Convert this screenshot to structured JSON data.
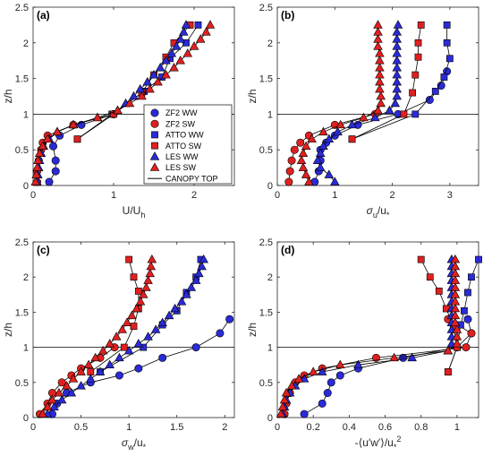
{
  "colors": {
    "blue": "#2a2bd6",
    "red": "#e02020",
    "ink": "#262626",
    "frame": "#262626"
  },
  "legend": {
    "entries": [
      {
        "label": "ZF2 WW",
        "color": "#2a2bd6",
        "marker": "circle"
      },
      {
        "label": "ZF2 SW",
        "color": "#e02020",
        "marker": "circle"
      },
      {
        "label": "ATTO WW",
        "color": "#2a2bd6",
        "marker": "square"
      },
      {
        "label": "ATTO SW",
        "color": "#e02020",
        "marker": "square"
      },
      {
        "label": "LES WW",
        "color": "#2a2bd6",
        "marker": "triangle"
      },
      {
        "label": "LES SW",
        "color": "#e02020",
        "marker": "triangle"
      },
      {
        "label": "CANOPY TOP",
        "color": "#000000",
        "marker": "line"
      }
    ],
    "placement": "inside panel (a), lower right"
  },
  "chart_data": [
    {
      "type": "line",
      "panel_label": "(a)",
      "xlabel": {
        "main": "U/U",
        "sub": "h"
      },
      "ylabel": "z/h",
      "xlim": [
        0,
        2.5
      ],
      "ylim": [
        0,
        2.5
      ],
      "xticks": [
        "0",
        "1",
        "2"
      ],
      "xtick_values": [
        0,
        1,
        2
      ],
      "yticks": [
        "0",
        "0.5",
        "1",
        "1.5",
        "2",
        "2.5"
      ],
      "ytick_values": [
        0,
        0.5,
        1,
        1.5,
        2,
        2.5
      ],
      "canopy_top": 1,
      "series": [
        {
          "name": "ZF2 WW",
          "marker": "circle",
          "color": "blue",
          "y": [
            0.05,
            0.2,
            0.35,
            0.55,
            0.7,
            0.85,
            1.0
          ],
          "x": [
            0.2,
            0.28,
            0.28,
            0.25,
            0.33,
            0.6,
            1.0
          ]
        },
        {
          "name": "ZF2 SW",
          "marker": "circle",
          "color": "red",
          "y": [
            0.05,
            0.2,
            0.35,
            0.5,
            0.6,
            0.7,
            0.85,
            1.0
          ],
          "x": [
            0.05,
            0.05,
            0.07,
            0.1,
            0.12,
            0.18,
            0.5,
            1.0
          ]
        },
        {
          "name": "ATTO WW",
          "marker": "square",
          "color": "blue",
          "y": [
            0.65,
            1.0,
            1.32,
            1.52,
            1.78,
            2.0,
            2.25
          ],
          "x": [
            0.55,
            0.98,
            1.38,
            1.6,
            1.7,
            1.9,
            2.05
          ]
        },
        {
          "name": "ATTO SW",
          "marker": "square",
          "color": "red",
          "y": [
            0.65,
            1.0,
            1.3,
            1.55,
            1.8,
            2.0,
            2.25
          ],
          "x": [
            0.55,
            1.0,
            1.35,
            1.5,
            1.65,
            1.75,
            1.95
          ]
        },
        {
          "name": "LES WW",
          "marker": "triangle",
          "color": "blue",
          "y": [
            0.05,
            0.15,
            0.25,
            0.35,
            0.45,
            0.55,
            0.65,
            0.75,
            0.85,
            0.95,
            1.05,
            1.15,
            1.25,
            1.35,
            1.45,
            1.55,
            1.65,
            1.75,
            1.85,
            1.95,
            2.05,
            2.15,
            2.25
          ],
          "x": [
            0.05,
            0.06,
            0.07,
            0.08,
            0.1,
            0.13,
            0.2,
            0.3,
            0.5,
            0.8,
            1.05,
            1.15,
            1.25,
            1.33,
            1.42,
            1.5,
            1.58,
            1.65,
            1.72,
            1.78,
            1.83,
            1.87,
            1.9
          ]
        },
        {
          "name": "LES SW",
          "marker": "triangle",
          "color": "red",
          "y": [
            0.05,
            0.15,
            0.25,
            0.35,
            0.45,
            0.55,
            0.65,
            0.75,
            0.85,
            0.95,
            1.05,
            1.15,
            1.25,
            1.35,
            1.45,
            1.55,
            1.65,
            1.75,
            1.85,
            1.95,
            2.05,
            2.15,
            2.25
          ],
          "x": [
            0.03,
            0.04,
            0.05,
            0.06,
            0.08,
            0.12,
            0.18,
            0.3,
            0.5,
            0.8,
            1.05,
            1.2,
            1.35,
            1.45,
            1.55,
            1.65,
            1.75,
            1.83,
            1.92,
            2.0,
            2.08,
            2.15,
            2.2
          ]
        }
      ]
    },
    {
      "type": "line",
      "panel_label": "(b)",
      "xlabel": {
        "main": "σ",
        "main_sub": "u",
        "rest": "/u",
        "sub": "*"
      },
      "ylabel": "z/h",
      "xlim": [
        0,
        3.5
      ],
      "ylim": [
        0,
        2.5
      ],
      "xticks": [
        "0",
        "1",
        "2",
        "3"
      ],
      "xtick_values": [
        0,
        1,
        2,
        3
      ],
      "yticks": [
        "0",
        "0.5",
        "1",
        "1.5",
        "2",
        "2.5"
      ],
      "ytick_values": [
        0,
        0.5,
        1,
        1.5,
        2,
        2.5
      ],
      "canopy_top": 1,
      "series": [
        {
          "name": "ZF2 WW",
          "marker": "circle",
          "color": "blue",
          "y": [
            0.05,
            0.2,
            0.35,
            0.5,
            0.6,
            0.7,
            0.85,
            1.0,
            1.2,
            1.4,
            1.6
          ],
          "x": [
            0.65,
            0.72,
            0.75,
            0.75,
            0.85,
            1.0,
            1.4,
            2.1,
            2.65,
            2.85,
            2.95
          ]
        },
        {
          "name": "ZF2 SW",
          "marker": "circle",
          "color": "red",
          "y": [
            0.05,
            0.2,
            0.35,
            0.5,
            0.6,
            0.7,
            0.85,
            1.0
          ],
          "x": [
            0.2,
            0.22,
            0.25,
            0.3,
            0.4,
            0.55,
            1.0,
            1.7
          ]
        },
        {
          "name": "ATTO WW",
          "marker": "square",
          "color": "blue",
          "y": [
            0.65,
            1.0,
            1.32,
            1.52,
            1.78,
            2.0,
            2.25
          ],
          "x": [
            1.3,
            2.4,
            2.75,
            2.9,
            3.0,
            2.95,
            2.95
          ]
        },
        {
          "name": "ATTO SW",
          "marker": "square",
          "color": "red",
          "y": [
            0.65,
            1.0,
            1.3,
            1.55,
            1.8,
            2.0,
            2.25
          ],
          "x": [
            1.3,
            2.2,
            2.35,
            2.4,
            2.45,
            2.45,
            2.5
          ]
        },
        {
          "name": "LES WW",
          "marker": "triangle",
          "color": "blue",
          "y": [
            0.05,
            0.15,
            0.25,
            0.35,
            0.45,
            0.55,
            0.65,
            0.75,
            0.85,
            0.95,
            1.05,
            1.15,
            1.25,
            1.35,
            1.45,
            1.55,
            1.65,
            1.75,
            1.85,
            1.95,
            2.05,
            2.15,
            2.25
          ],
          "x": [
            1.0,
            0.9,
            0.75,
            0.7,
            0.75,
            0.8,
            0.9,
            1.05,
            1.3,
            1.7,
            1.95,
            2.05,
            2.08,
            2.08,
            2.08,
            2.08,
            2.08,
            2.08,
            2.08,
            2.08,
            2.08,
            2.08,
            2.1
          ]
        },
        {
          "name": "LES SW",
          "marker": "triangle",
          "color": "red",
          "y": [
            0.05,
            0.15,
            0.25,
            0.35,
            0.45,
            0.55,
            0.65,
            0.75,
            0.85,
            0.95,
            1.05,
            1.15,
            1.25,
            1.35,
            1.45,
            1.55,
            1.65,
            1.75,
            1.85,
            1.95,
            2.05,
            2.15,
            2.25
          ],
          "x": [
            0.55,
            0.5,
            0.45,
            0.42,
            0.45,
            0.5,
            0.6,
            0.8,
            1.1,
            1.5,
            1.75,
            1.8,
            1.8,
            1.78,
            1.78,
            1.78,
            1.78,
            1.78,
            1.78,
            1.75,
            1.75,
            1.75,
            1.75
          ]
        }
      ]
    },
    {
      "type": "line",
      "panel_label": "(c)",
      "xlabel": {
        "main": "σ",
        "main_sub": "w",
        "rest": "/u",
        "sub": "*"
      },
      "ylabel": "z/h",
      "xlim": [
        0,
        2.1
      ],
      "ylim": [
        0,
        2.5
      ],
      "xticks": [
        "0",
        "0.5",
        "1",
        "1.5",
        "2"
      ],
      "xtick_values": [
        0,
        0.5,
        1,
        1.5,
        2
      ],
      "yticks": [
        "0",
        "0.5",
        "1",
        "1.5",
        "2",
        "2.5"
      ],
      "ytick_values": [
        0,
        0.5,
        1,
        1.5,
        2,
        2.5
      ],
      "canopy_top": 1,
      "series": [
        {
          "name": "ZF2 WW",
          "marker": "circle",
          "color": "blue",
          "y": [
            0.05,
            0.2,
            0.35,
            0.5,
            0.6,
            0.7,
            0.85,
            1.0,
            1.2,
            1.4
          ],
          "x": [
            0.2,
            0.25,
            0.35,
            0.6,
            0.9,
            1.1,
            1.35,
            1.7,
            1.95,
            2.05
          ]
        },
        {
          "name": "ZF2 SW",
          "marker": "circle",
          "color": "red",
          "y": [
            0.05,
            0.2,
            0.35,
            0.5,
            0.6,
            0.7,
            0.85,
            1.0
          ],
          "x": [
            0.07,
            0.15,
            0.2,
            0.3,
            0.4,
            0.5,
            0.7,
            0.85
          ]
        },
        {
          "name": "ATTO WW",
          "marker": "square",
          "color": "blue",
          "y": [
            0.65,
            1.0,
            1.32,
            1.52,
            1.78,
            2.0,
            2.25
          ],
          "x": [
            0.7,
            1.15,
            1.35,
            1.5,
            1.6,
            1.7,
            1.75
          ]
        },
        {
          "name": "ATTO SW",
          "marker": "square",
          "color": "red",
          "y": [
            0.65,
            1.0,
            1.3,
            1.55,
            1.8,
            2.0,
            2.25
          ],
          "x": [
            0.6,
            0.95,
            1.05,
            1.1,
            1.1,
            1.05,
            1.0
          ]
        },
        {
          "name": "LES WW",
          "marker": "triangle",
          "color": "blue",
          "y": [
            0.05,
            0.15,
            0.25,
            0.35,
            0.45,
            0.55,
            0.65,
            0.75,
            0.85,
            0.95,
            1.05,
            1.15,
            1.25,
            1.35,
            1.45,
            1.55,
            1.65,
            1.75,
            1.85,
            1.95,
            2.05,
            2.15,
            2.25
          ],
          "x": [
            0.15,
            0.22,
            0.3,
            0.4,
            0.5,
            0.6,
            0.7,
            0.8,
            0.9,
            1.0,
            1.1,
            1.2,
            1.28,
            1.35,
            1.42,
            1.48,
            1.55,
            1.6,
            1.65,
            1.7,
            1.73,
            1.76,
            1.78
          ]
        },
        {
          "name": "LES SW",
          "marker": "triangle",
          "color": "red",
          "y": [
            0.05,
            0.15,
            0.25,
            0.35,
            0.45,
            0.55,
            0.65,
            0.75,
            0.85,
            0.95,
            1.05,
            1.15,
            1.25,
            1.35,
            1.45,
            1.55,
            1.65,
            1.75,
            1.85,
            1.95,
            2.05,
            2.15,
            2.25
          ],
          "x": [
            0.1,
            0.15,
            0.2,
            0.27,
            0.35,
            0.42,
            0.5,
            0.58,
            0.65,
            0.73,
            0.8,
            0.87,
            0.93,
            0.98,
            1.03,
            1.08,
            1.12,
            1.15,
            1.18,
            1.2,
            1.22,
            1.23,
            1.24
          ]
        }
      ]
    },
    {
      "type": "line",
      "panel_label": "(d)",
      "xlabel": {
        "main": "-⟨u′w′⟩/u",
        "sub": "*",
        "sup": "2"
      },
      "ylabel": "z/h",
      "xlim": [
        0,
        1.12
      ],
      "ylim": [
        0,
        2.5
      ],
      "xticks": [
        "0",
        "0.2",
        "0.4",
        "0.6",
        "0.8",
        "1"
      ],
      "xtick_values": [
        0,
        0.2,
        0.4,
        0.6,
        0.8,
        1
      ],
      "yticks": [
        "0",
        "0.5",
        "1",
        "1.5",
        "2",
        "2.5"
      ],
      "ytick_values": [
        0,
        0.5,
        1,
        1.5,
        2,
        2.5
      ],
      "canopy_top": 1,
      "series": [
        {
          "name": "ZF2 WW",
          "marker": "circle",
          "color": "blue",
          "y": [
            0.05,
            0.2,
            0.35,
            0.5,
            0.6,
            0.7,
            0.85,
            1.0,
            1.2,
            1.4
          ],
          "x": [
            0.15,
            0.25,
            0.28,
            0.3,
            0.35,
            0.45,
            0.7,
            1.0,
            1.08,
            1.06
          ]
        },
        {
          "name": "ZF2 SW",
          "marker": "circle",
          "color": "red",
          "y": [
            0.05,
            0.2,
            0.35,
            0.5,
            0.6,
            0.7,
            0.85,
            1.0,
            1.2,
            1.4
          ],
          "x": [
            0.04,
            0.05,
            0.07,
            0.1,
            0.15,
            0.25,
            0.55,
            1.05,
            1.08,
            0.95
          ]
        },
        {
          "name": "ATTO WW",
          "marker": "square",
          "color": "blue",
          "y": [
            0.65,
            1.0,
            1.32,
            1.52,
            1.78,
            2.0,
            2.25
          ],
          "x": [
            0.95,
            1.0,
            1.02,
            1.04,
            1.06,
            1.08,
            1.12
          ]
        },
        {
          "name": "ATTO SW",
          "marker": "square",
          "color": "red",
          "y": [
            0.65,
            1.0,
            1.3,
            1.55,
            1.8,
            2.0,
            2.25
          ],
          "x": [
            0.95,
            1.0,
            0.98,
            0.94,
            0.9,
            0.85,
            0.8
          ]
        },
        {
          "name": "LES WW",
          "marker": "triangle",
          "color": "blue",
          "y": [
            0.05,
            0.15,
            0.25,
            0.35,
            0.45,
            0.55,
            0.65,
            0.75,
            0.85,
            0.95,
            1.05,
            1.15,
            1.25,
            1.35,
            1.45,
            1.55,
            1.65,
            1.75,
            1.85,
            1.95,
            2.05,
            2.15,
            2.25
          ],
          "x": [
            0.03,
            0.04,
            0.05,
            0.07,
            0.1,
            0.15,
            0.25,
            0.45,
            0.75,
            0.95,
            0.97,
            0.97,
            0.97,
            0.97,
            0.97,
            0.97,
            0.97,
            0.97,
            0.97,
            0.97,
            0.97,
            0.97,
            0.97
          ]
        },
        {
          "name": "LES SW",
          "marker": "triangle",
          "color": "red",
          "y": [
            0.05,
            0.15,
            0.25,
            0.35,
            0.45,
            0.55,
            0.65,
            0.75,
            0.85,
            0.95,
            1.05,
            1.15,
            1.25,
            1.35,
            1.45,
            1.55,
            1.65,
            1.75,
            1.85,
            1.95,
            2.05,
            2.15,
            2.25
          ],
          "x": [
            0.02,
            0.03,
            0.04,
            0.05,
            0.08,
            0.12,
            0.2,
            0.35,
            0.65,
            0.95,
            1.0,
            1.0,
            1.0,
            0.99,
            0.99,
            0.99,
            0.99,
            0.99,
            0.99,
            0.99,
            0.99,
            0.99,
            0.99
          ]
        }
      ]
    }
  ]
}
